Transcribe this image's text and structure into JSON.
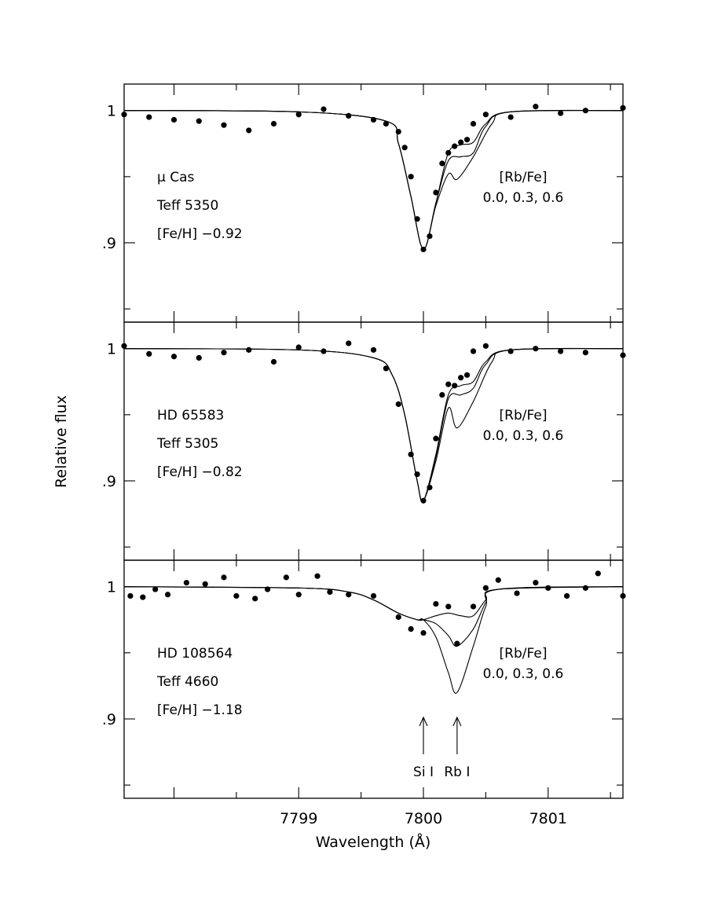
{
  "figure": {
    "xlabel": "Wavelength (Å)",
    "ylabel": "Relative flux"
  },
  "chart_data": [
    {
      "type": "line",
      "star": "μ Cas",
      "star_line1": "μ Cas",
      "star_line2": "Teff 5350",
      "star_line3": "[Fe/H] −0.92",
      "teff": 5350,
      "feh": -0.92,
      "legend_title": "[Rb/Fe]",
      "legend_values": "0.0, 0.3, 0.6",
      "xlim": [
        7797.6,
        7801.6
      ],
      "ylim": [
        0.84,
        1.02
      ],
      "xticks": [
        "7799",
        "7800",
        "7801"
      ],
      "yticks": [
        "1",
        ".9"
      ],
      "xlabel": "",
      "ylabel": "Relative flux",
      "series": [
        {
          "name": "0.0",
          "x": [
            7797.6,
            7799.0,
            7799.7,
            7799.8,
            7799.9,
            7800.0,
            7800.1,
            7800.2,
            7800.3,
            7800.4,
            7800.5,
            7800.7,
            7801.6
          ],
          "y": [
            1.0,
            0.999,
            0.992,
            0.975,
            0.935,
            0.895,
            0.93,
            0.968,
            0.974,
            0.976,
            0.99,
            0.999,
            1.0
          ]
        },
        {
          "name": "0.3",
          "x": [
            7797.6,
            7799.0,
            7799.7,
            7799.8,
            7799.9,
            7800.0,
            7800.1,
            7800.2,
            7800.3,
            7800.4,
            7800.5,
            7800.7,
            7801.6
          ],
          "y": [
            1.0,
            0.999,
            0.992,
            0.975,
            0.935,
            0.895,
            0.93,
            0.962,
            0.965,
            0.968,
            0.988,
            0.999,
            1.0
          ]
        },
        {
          "name": "0.6",
          "x": [
            7797.6,
            7799.0,
            7799.7,
            7799.8,
            7799.9,
            7800.0,
            7800.1,
            7800.2,
            7800.27,
            7800.4,
            7800.55,
            7800.7,
            7801.6
          ],
          "y": [
            1.0,
            0.999,
            0.992,
            0.975,
            0.935,
            0.895,
            0.928,
            0.952,
            0.948,
            0.965,
            0.99,
            0.999,
            1.0
          ]
        }
      ],
      "observed": {
        "x": [
          7797.6,
          7797.8,
          7798.0,
          7798.2,
          7798.4,
          7798.6,
          7798.8,
          7799.0,
          7799.2,
          7799.4,
          7799.6,
          7799.7,
          7799.8,
          7799.85,
          7799.9,
          7799.95,
          7800.0,
          7800.05,
          7800.1,
          7800.15,
          7800.2,
          7800.25,
          7800.3,
          7800.35,
          7800.4,
          7800.5,
          7800.7,
          7800.9,
          7801.1,
          7801.3,
          7801.6
        ],
        "y": [
          0.997,
          0.995,
          0.993,
          0.992,
          0.989,
          0.985,
          0.99,
          0.997,
          1.001,
          0.996,
          0.993,
          0.99,
          0.984,
          0.972,
          0.95,
          0.918,
          0.895,
          0.905,
          0.938,
          0.96,
          0.968,
          0.973,
          0.976,
          0.978,
          0.99,
          0.997,
          0.995,
          1.003,
          0.998,
          1.0,
          1.002
        ]
      }
    },
    {
      "type": "line",
      "star": "HD 65583",
      "star_line1": "HD 65583",
      "star_line2": "Teff 5305",
      "star_line3": "[Fe/H] −0.82",
      "teff": 5305,
      "feh": -0.82,
      "legend_title": "[Rb/Fe]",
      "legend_values": "0.0, 0.3, 0.6",
      "xlim": [
        7797.6,
        7801.6
      ],
      "ylim": [
        0.84,
        1.02
      ],
      "xticks": [
        "7799",
        "7800",
        "7801"
      ],
      "yticks": [
        "1",
        ".9"
      ],
      "xlabel": "",
      "ylabel": "Relative flux",
      "series": [
        {
          "name": "0.0",
          "x": [
            7797.6,
            7799.0,
            7799.6,
            7799.75,
            7799.85,
            7799.95,
            7800.0,
            7800.1,
            7800.2,
            7800.3,
            7800.4,
            7800.5,
            7800.7,
            7801.6
          ],
          "y": [
            1.0,
            0.999,
            0.993,
            0.98,
            0.95,
            0.9,
            0.885,
            0.92,
            0.965,
            0.972,
            0.975,
            0.99,
            0.999,
            1.0
          ]
        },
        {
          "name": "0.3",
          "x": [
            7797.6,
            7799.0,
            7799.6,
            7799.75,
            7799.85,
            7799.95,
            7800.0,
            7800.1,
            7800.2,
            7800.3,
            7800.4,
            7800.5,
            7800.7,
            7801.6
          ],
          "y": [
            1.0,
            0.999,
            0.993,
            0.98,
            0.95,
            0.9,
            0.885,
            0.918,
            0.962,
            0.965,
            0.97,
            0.988,
            0.999,
            1.0
          ]
        },
        {
          "name": "0.6",
          "x": [
            7797.6,
            7799.0,
            7799.6,
            7799.75,
            7799.85,
            7799.95,
            7800.0,
            7800.1,
            7800.2,
            7800.27,
            7800.4,
            7800.55,
            7800.7,
            7801.6
          ],
          "y": [
            1.0,
            0.999,
            0.993,
            0.98,
            0.95,
            0.9,
            0.885,
            0.915,
            0.955,
            0.94,
            0.96,
            0.99,
            0.999,
            1.0
          ]
        }
      ],
      "observed": {
        "x": [
          7797.6,
          7797.8,
          7798.0,
          7798.2,
          7798.4,
          7798.6,
          7798.8,
          7799.0,
          7799.2,
          7799.4,
          7799.6,
          7799.7,
          7799.8,
          7799.9,
          7799.95,
          7800.0,
          7800.05,
          7800.1,
          7800.15,
          7800.2,
          7800.25,
          7800.3,
          7800.35,
          7800.4,
          7800.5,
          7800.7,
          7800.9,
          7801.1,
          7801.3,
          7801.6
        ],
        "y": [
          1.002,
          0.996,
          0.994,
          0.993,
          0.997,
          0.999,
          0.99,
          1.001,
          0.998,
          1.004,
          0.999,
          0.985,
          0.958,
          0.92,
          0.905,
          0.885,
          0.895,
          0.932,
          0.965,
          0.973,
          0.972,
          0.978,
          0.98,
          0.998,
          1.002,
          0.998,
          1.0,
          0.998,
          0.997,
          0.995
        ]
      }
    },
    {
      "type": "line",
      "star": "HD 108564",
      "star_line1": "HD 108564",
      "star_line2": "Teff 4660",
      "star_line3": "[Fe/H] −1.18",
      "teff": 4660,
      "feh": -1.18,
      "legend_title": "[Rb/Fe]",
      "legend_values": "0.0, 0.3, 0.6",
      "xlim": [
        7797.6,
        7801.6
      ],
      "ylim": [
        0.84,
        1.02
      ],
      "xticks": [
        "7799",
        "7800",
        "7801"
      ],
      "yticks": [
        "1",
        ".9"
      ],
      "xlabel": "Wavelength (Å)",
      "ylabel": "Relative flux",
      "annotations": [
        {
          "text": "Si I",
          "x": 7800.0
        },
        {
          "text": "Rb I",
          "x": 7800.27
        }
      ],
      "series": [
        {
          "name": "0.0",
          "x": [
            7797.6,
            7799.0,
            7799.4,
            7799.6,
            7799.8,
            7799.95,
            7800.0,
            7800.1,
            7800.2,
            7800.3,
            7800.4,
            7800.5,
            7800.6,
            7801.6
          ],
          "y": [
            1.0,
            0.999,
            0.996,
            0.99,
            0.98,
            0.975,
            0.975,
            0.978,
            0.98,
            0.978,
            0.978,
            0.99,
            0.998,
            1.0
          ]
        },
        {
          "name": "0.3",
          "x": [
            7797.6,
            7799.0,
            7799.4,
            7799.6,
            7799.8,
            7799.95,
            7800.0,
            7800.1,
            7800.2,
            7800.27,
            7800.4,
            7800.5,
            7800.6,
            7801.6
          ],
          "y": [
            1.0,
            0.999,
            0.996,
            0.99,
            0.98,
            0.975,
            0.975,
            0.972,
            0.963,
            0.955,
            0.968,
            0.988,
            0.998,
            1.0
          ]
        },
        {
          "name": "0.6",
          "x": [
            7797.6,
            7799.0,
            7799.4,
            7799.6,
            7799.8,
            7799.95,
            7800.0,
            7800.1,
            7800.2,
            7800.27,
            7800.4,
            7800.5,
            7800.6,
            7801.6
          ],
          "y": [
            1.0,
            0.999,
            0.996,
            0.99,
            0.98,
            0.975,
            0.975,
            0.962,
            0.935,
            0.92,
            0.955,
            0.985,
            0.998,
            1.0
          ]
        }
      ],
      "observed": {
        "x": [
          7797.65,
          7797.75,
          7797.85,
          7797.95,
          7798.1,
          7798.25,
          7798.4,
          7798.5,
          7798.65,
          7798.75,
          7798.9,
          7799.0,
          7799.15,
          7799.25,
          7799.4,
          7799.6,
          7799.8,
          7799.9,
          7800.0,
          7800.1,
          7800.2,
          7800.27,
          7800.4,
          7800.5,
          7800.6,
          7800.75,
          7800.9,
          7801.0,
          7801.15,
          7801.3,
          7801.4,
          7801.6
        ],
        "y": [
          0.993,
          0.992,
          0.998,
          0.994,
          1.003,
          1.002,
          1.007,
          0.993,
          0.991,
          0.998,
          1.007,
          0.994,
          1.008,
          0.996,
          0.994,
          0.993,
          0.977,
          0.968,
          0.965,
          0.987,
          0.985,
          0.957,
          0.985,
          0.999,
          1.005,
          0.995,
          1.003,
          0.999,
          0.993,
          0.999,
          1.01,
          0.993
        ]
      }
    }
  ]
}
